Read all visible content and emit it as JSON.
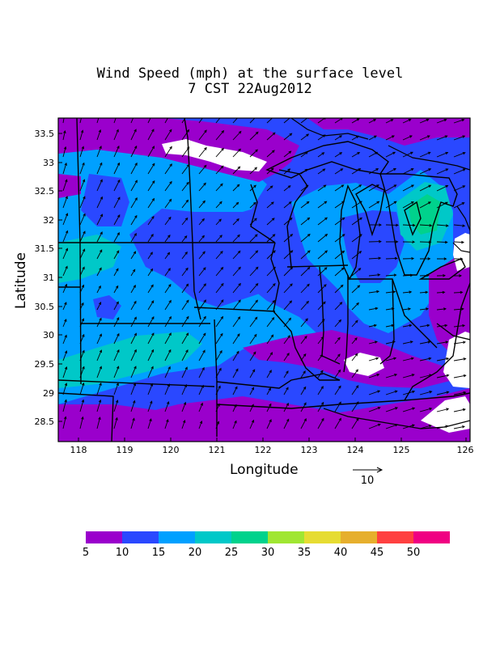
{
  "title_line1": "Wind Speed (mph) at the surface level",
  "title_line2": "7 CST 22Aug2012",
  "xlabel": "Longitude",
  "ylabel": "Latitude",
  "x_ticks": [
    "118",
    "119",
    "120",
    "121",
    "122",
    "123",
    "124",
    "125",
    "126"
  ],
  "y_ticks": [
    "33.5",
    "33",
    "32.5",
    "32",
    "31.5",
    "31",
    "30.5",
    "30",
    "29.5",
    "29",
    "28.5"
  ],
  "reference_vector_label": "10",
  "colorbar": {
    "labels": [
      "5",
      "10",
      "15",
      "20",
      "25",
      "30",
      "35",
      "40",
      "45",
      "50"
    ],
    "colors": [
      "#9a00cc",
      "#2a48ff",
      "#00a0ff",
      "#00c8c8",
      "#00d28c",
      "#a0e632",
      "#e6dc32",
      "#e6af2d",
      "#ff4040",
      "#f00082"
    ]
  },
  "map_colors": {
    "ocean": "#ffffff",
    "speed_5_10": "#9a00cc",
    "speed_10_15": "#2a48ff",
    "speed_15_20": "#00a0ff",
    "speed_20_25": "#00c8c8",
    "speed_25_30": "#00d28c"
  }
}
